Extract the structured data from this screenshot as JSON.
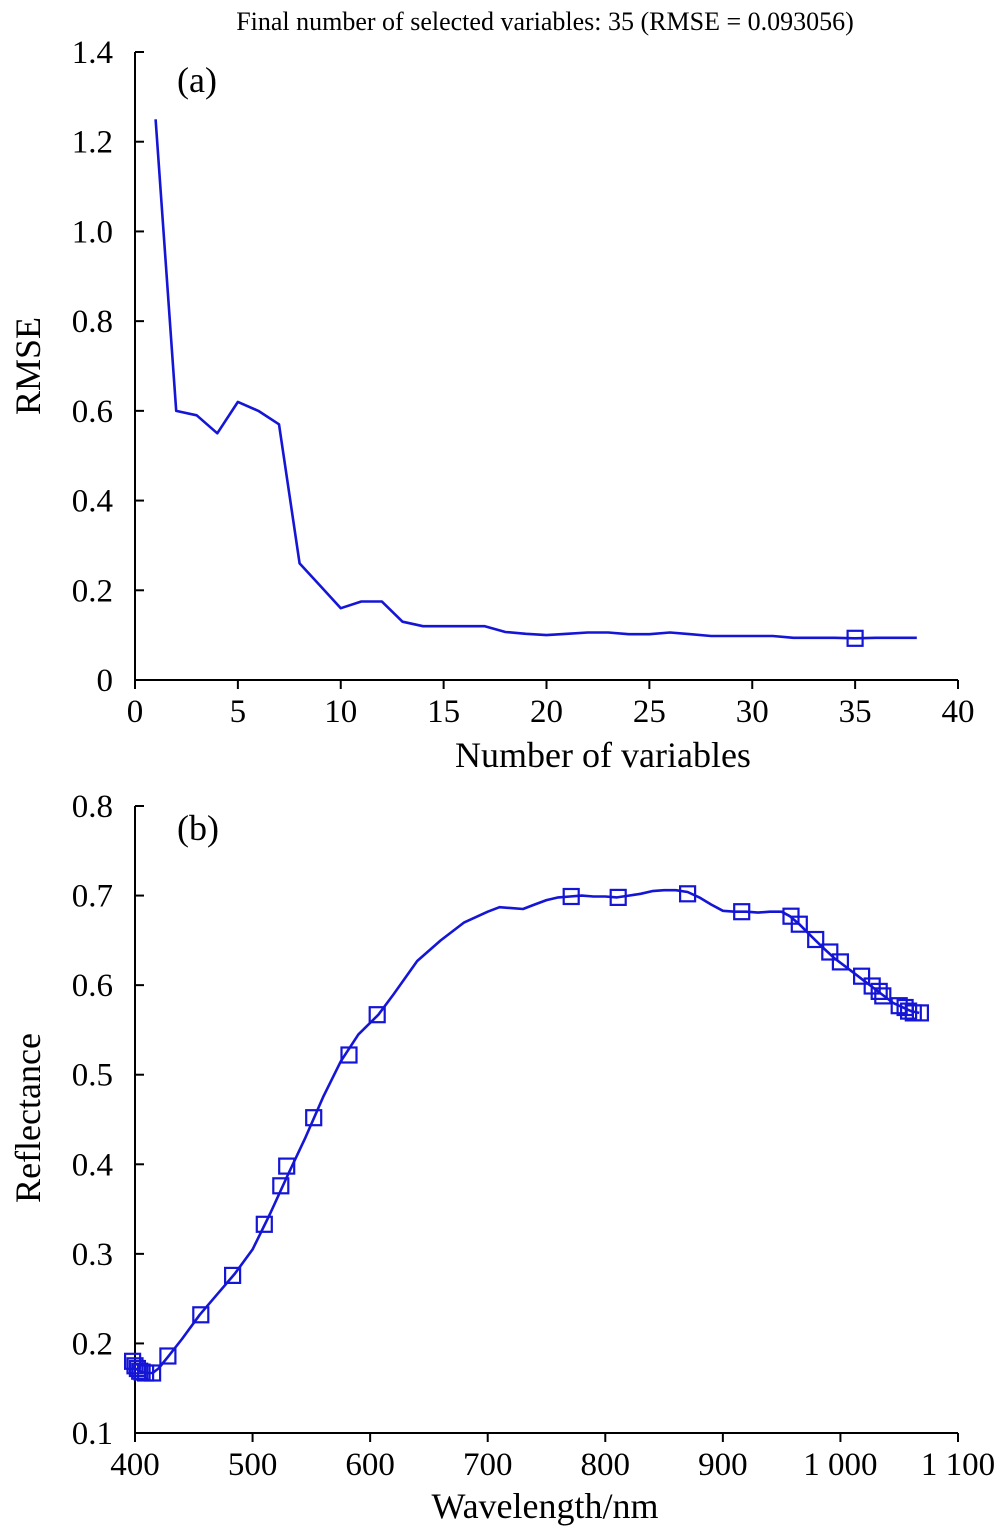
{
  "chart_data": [
    {
      "type": "line",
      "title": "Final number of selected variables: 35  (RMSE = 0.093056)",
      "panel_label": "(a)",
      "xlabel": "Number of variables",
      "ylabel": "RMSE",
      "xlim": [
        0,
        40
      ],
      "ylim": [
        0,
        1.4
      ],
      "xticks": [
        0,
        5,
        10,
        15,
        20,
        25,
        30,
        35,
        40
      ],
      "xtick_labels": [
        "0",
        "5",
        "10",
        "15",
        "20",
        "25",
        "30",
        "35",
        "40"
      ],
      "yticks": [
        0,
        0.2,
        0.4,
        0.6,
        0.8,
        1.0,
        1.2,
        1.4
      ],
      "ytick_labels": [
        "0",
        "0.2",
        "0.4",
        "0.6",
        "0.8",
        "1.0",
        "1.2",
        "1.4"
      ],
      "series": [
        {
          "x": [
            1,
            2,
            3,
            4,
            5,
            6,
            7,
            8,
            9,
            10,
            11,
            12,
            13,
            14,
            15,
            16,
            17,
            18,
            19,
            20,
            21,
            22,
            23,
            24,
            25,
            26,
            27,
            28,
            29,
            30,
            31,
            32,
            33,
            34,
            35,
            36,
            37,
            38
          ],
          "y": [
            1.25,
            0.6,
            0.59,
            0.55,
            0.62,
            0.6,
            0.57,
            0.26,
            0.21,
            0.16,
            0.175,
            0.175,
            0.13,
            0.12,
            0.12,
            0.12,
            0.12,
            0.107,
            0.103,
            0.1,
            0.103,
            0.106,
            0.106,
            0.102,
            0.102,
            0.106,
            0.102,
            0.098,
            0.098,
            0.098,
            0.098,
            0.094,
            0.094,
            0.094,
            0.093,
            0.094,
            0.094,
            0.094
          ]
        }
      ],
      "markers": [
        {
          "x": 35,
          "y": 0.093
        }
      ],
      "color": "#1515d6",
      "grid": false
    },
    {
      "type": "line",
      "panel_label": "(b)",
      "xlabel": "Wavelength/nm",
      "ylabel": "Reflectance",
      "xlim": [
        400,
        1100
      ],
      "ylim": [
        0.1,
        0.8
      ],
      "xticks": [
        400,
        500,
        600,
        700,
        800,
        900,
        1000,
        1100
      ],
      "xtick_labels": [
        "400",
        "500",
        "600",
        "700",
        "800",
        "900",
        "1 000",
        "1 100"
      ],
      "yticks": [
        0.1,
        0.2,
        0.3,
        0.4,
        0.5,
        0.6,
        0.7,
        0.8
      ],
      "ytick_labels": [
        "0.1",
        "0.2",
        "0.3",
        "0.4",
        "0.5",
        "0.6",
        "0.7",
        "0.8"
      ],
      "series": [
        {
          "x": [
            398,
            400,
            403,
            406,
            410,
            415,
            420,
            428,
            440,
            455,
            470,
            485,
            500,
            515,
            530,
            545,
            560,
            575,
            590,
            607,
            620,
            640,
            660,
            680,
            700,
            710,
            720,
            730,
            740,
            750,
            760,
            770,
            780,
            790,
            800,
            810,
            820,
            830,
            840,
            850,
            860,
            870,
            880,
            890,
            900,
            910,
            920,
            930,
            940,
            950,
            957,
            965,
            975,
            985,
            995,
            1005,
            1015,
            1020,
            1025,
            1030,
            1035,
            1040,
            1045,
            1050,
            1055,
            1060,
            1067
          ],
          "y": [
            0.175,
            0.172,
            0.17,
            0.168,
            0.167,
            0.167,
            0.172,
            0.185,
            0.205,
            0.232,
            0.255,
            0.278,
            0.305,
            0.345,
            0.388,
            0.43,
            0.475,
            0.515,
            0.545,
            0.567,
            0.59,
            0.627,
            0.65,
            0.67,
            0.682,
            0.687,
            0.686,
            0.685,
            0.69,
            0.695,
            0.698,
            0.699,
            0.7,
            0.699,
            0.699,
            0.698,
            0.7,
            0.702,
            0.705,
            0.706,
            0.706,
            0.704,
            0.698,
            0.69,
            0.683,
            0.682,
            0.682,
            0.681,
            0.682,
            0.682,
            0.677,
            0.668,
            0.655,
            0.642,
            0.63,
            0.62,
            0.61,
            0.605,
            0.6,
            0.595,
            0.59,
            0.585,
            0.58,
            0.577,
            0.574,
            0.571,
            0.569
          ]
        }
      ],
      "markers": [
        {
          "x": 398,
          "y": 0.18
        },
        {
          "x": 400,
          "y": 0.175
        },
        {
          "x": 402,
          "y": 0.172
        },
        {
          "x": 404,
          "y": 0.169
        },
        {
          "x": 406,
          "y": 0.168
        },
        {
          "x": 409,
          "y": 0.167
        },
        {
          "x": 415,
          "y": 0.167
        },
        {
          "x": 428,
          "y": 0.186
        },
        {
          "x": 456,
          "y": 0.232
        },
        {
          "x": 483,
          "y": 0.276
        },
        {
          "x": 510,
          "y": 0.333
        },
        {
          "x": 524,
          "y": 0.376
        },
        {
          "x": 529,
          "y": 0.398
        },
        {
          "x": 552,
          "y": 0.452
        },
        {
          "x": 582,
          "y": 0.522
        },
        {
          "x": 606,
          "y": 0.567
        },
        {
          "x": 771,
          "y": 0.699
        },
        {
          "x": 811,
          "y": 0.698
        },
        {
          "x": 870,
          "y": 0.702
        },
        {
          "x": 916,
          "y": 0.682
        },
        {
          "x": 958,
          "y": 0.677
        },
        {
          "x": 965,
          "y": 0.668
        },
        {
          "x": 979,
          "y": 0.651
        },
        {
          "x": 991,
          "y": 0.637
        },
        {
          "x": 1000,
          "y": 0.626
        },
        {
          "x": 1018,
          "y": 0.61
        },
        {
          "x": 1027,
          "y": 0.599
        },
        {
          "x": 1033,
          "y": 0.593
        },
        {
          "x": 1036,
          "y": 0.588
        },
        {
          "x": 1050,
          "y": 0.577
        },
        {
          "x": 1055,
          "y": 0.575
        },
        {
          "x": 1058,
          "y": 0.571
        },
        {
          "x": 1062,
          "y": 0.569
        },
        {
          "x": 1068,
          "y": 0.569
        }
      ],
      "color": "#1515d6",
      "grid": false
    }
  ]
}
